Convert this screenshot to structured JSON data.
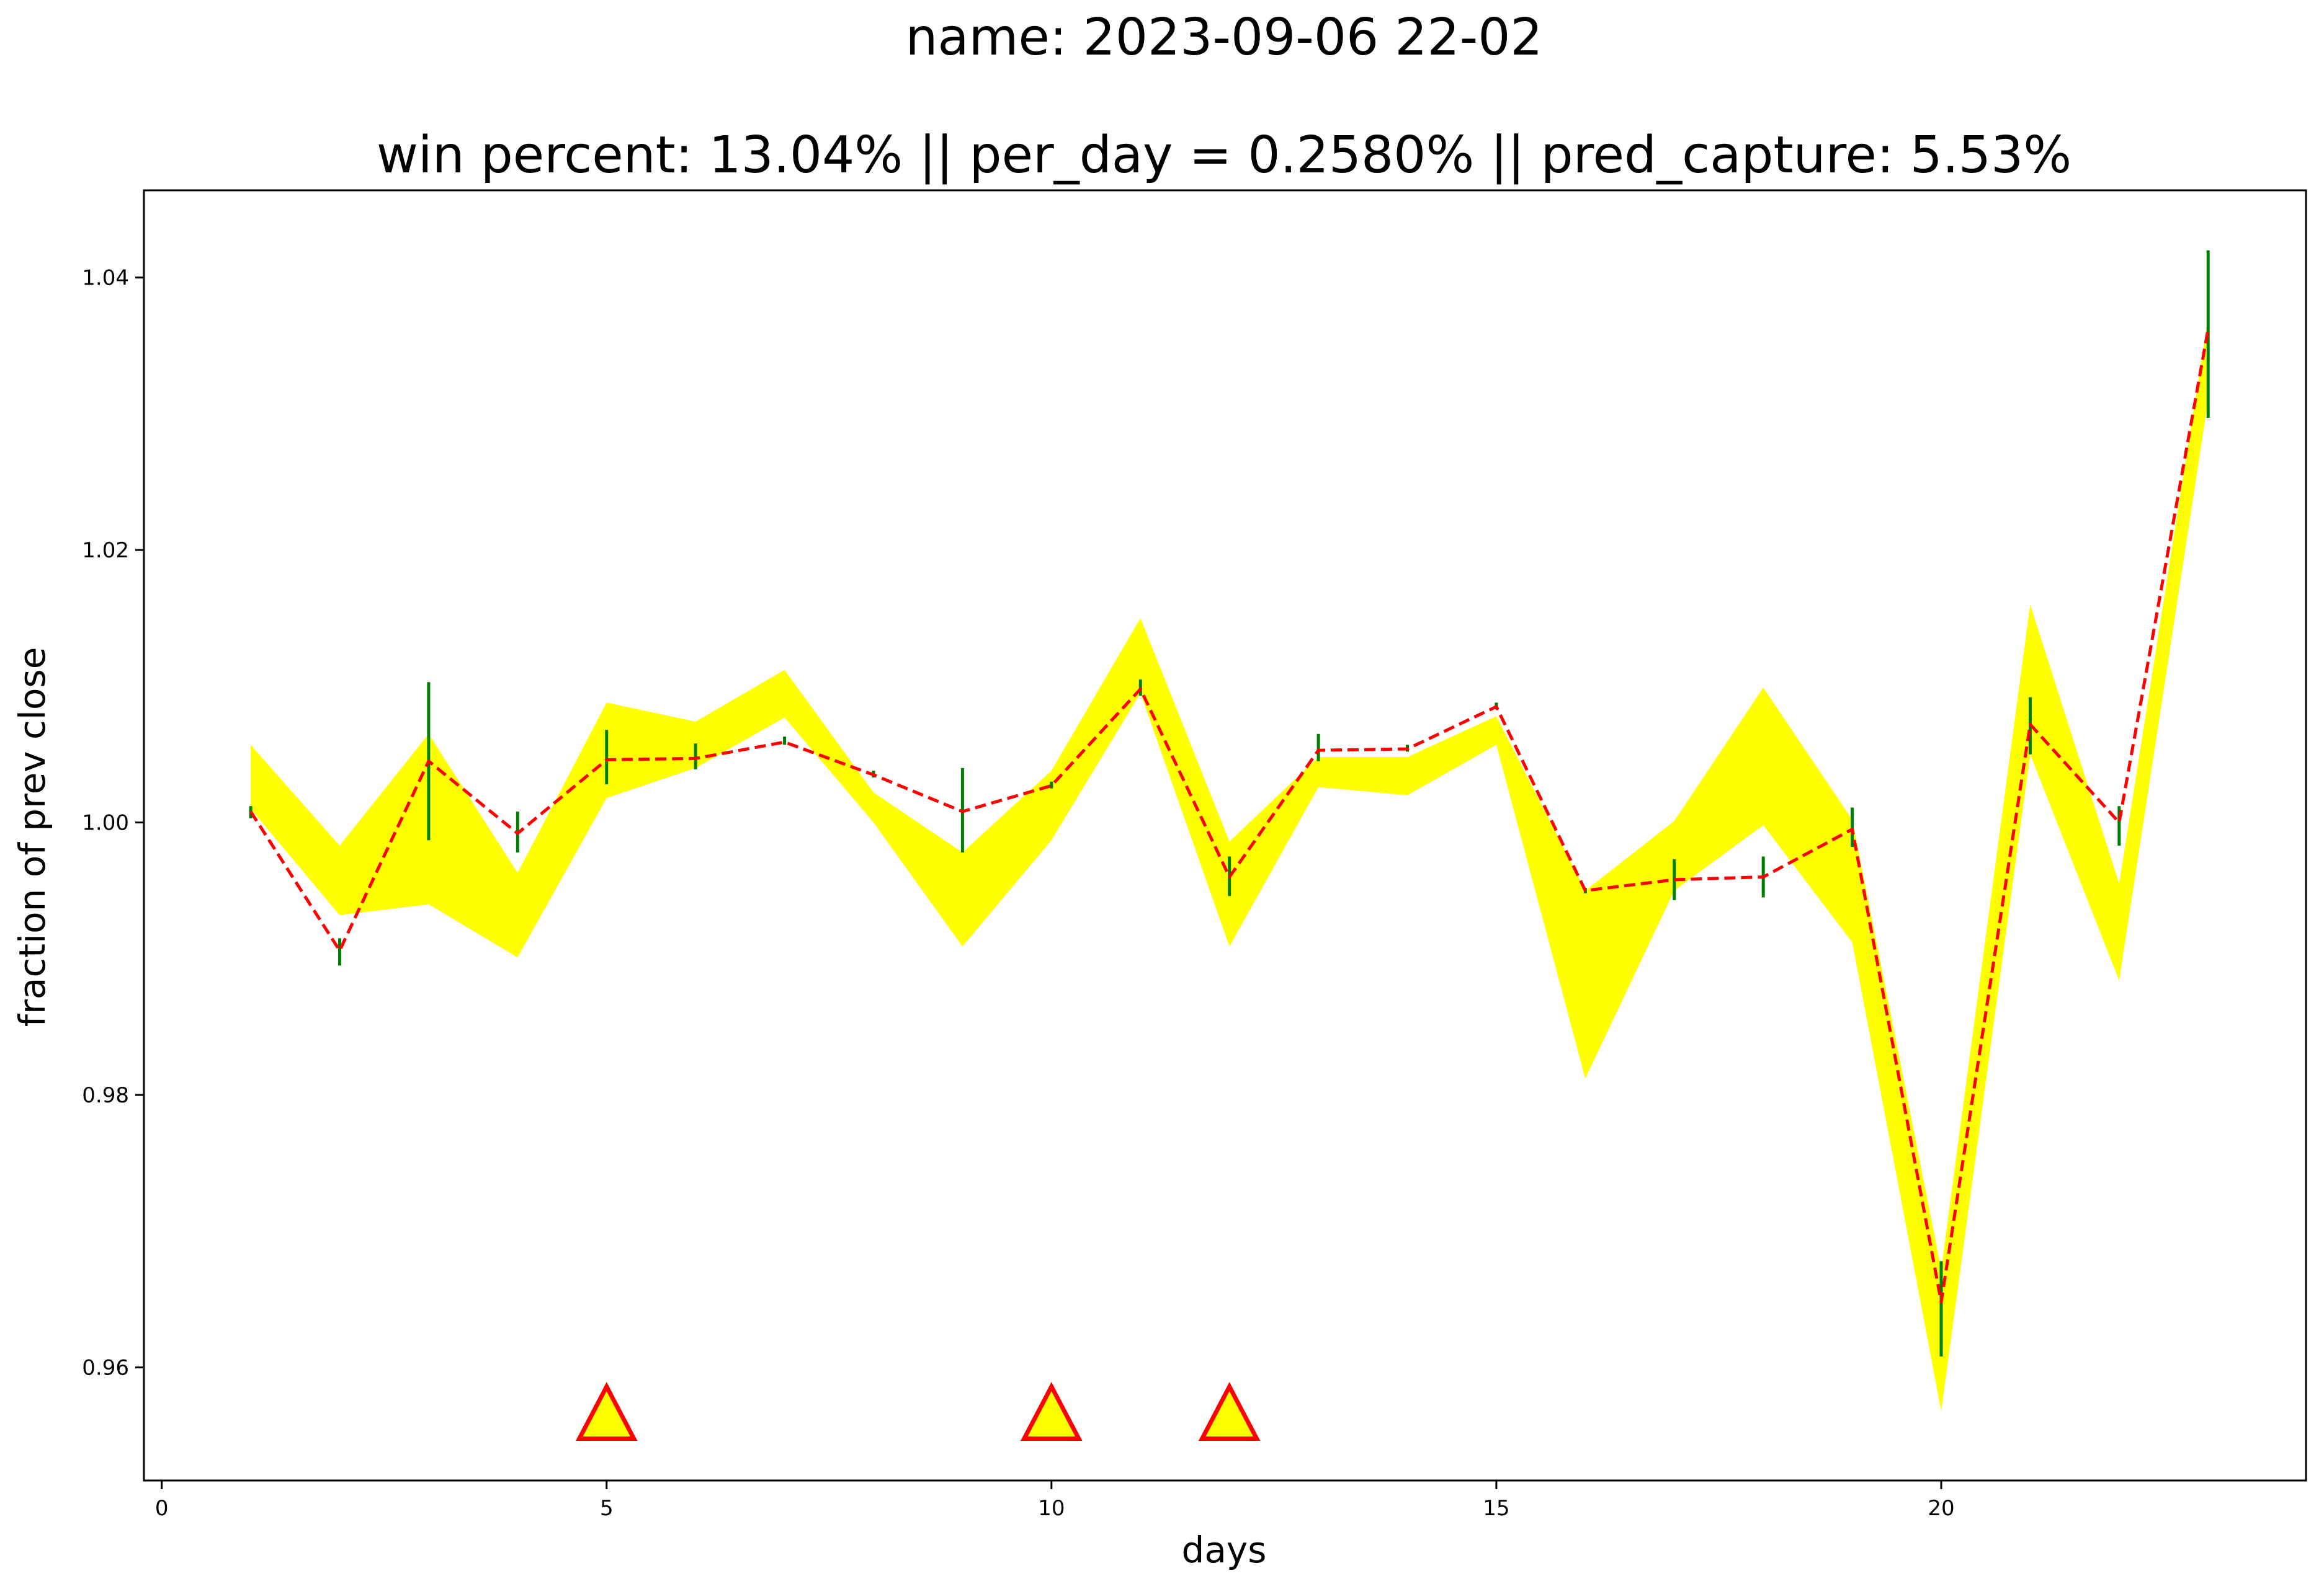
{
  "chart_data": {
    "type": "line",
    "title": "name: 2023-09-06 22-02",
    "subtitle": "win percent: 13.04%  || per_day = 0.2580% || pred_capture: 5.53%",
    "xlabel": "days",
    "ylabel": "fraction of prev close",
    "xlim": [
      -0.2,
      24.1
    ],
    "ylim": [
      0.9517,
      1.0464
    ],
    "xticks": [
      0,
      5,
      10,
      15,
      20
    ],
    "yticks": [
      0.96,
      0.98,
      1.0,
      1.02,
      1.04
    ],
    "xtick_labels": [
      "0",
      "5",
      "10",
      "15",
      "20"
    ],
    "ytick_labels": [
      "0.96",
      "0.98",
      "1.00",
      "1.02",
      "1.04"
    ],
    "grid": false,
    "x": [
      1,
      2,
      3,
      4,
      5,
      6,
      7,
      8,
      9,
      10,
      11,
      12,
      13,
      14,
      15,
      16,
      17,
      18,
      19,
      20,
      21,
      22,
      23
    ],
    "band": {
      "color": "#ffff00",
      "upper": [
        1.0057,
        0.9983,
        1.0065,
        0.9963,
        1.0088,
        1.0074,
        1.0112,
        1.0022,
        0.9978,
        1.0038,
        1.015,
        0.9986,
        1.0048,
        1.0048,
        1.0078,
        0.995,
        1.0001,
        1.0099,
        1.0002,
        0.9672,
        1.016,
        0.9955,
        1.037
      ],
      "lower": [
        1.001,
        0.9932,
        0.994,
        0.9901,
        1.0018,
        1.004,
        1.0077,
        1.0,
        0.9909,
        0.9987,
        1.0095,
        0.9909,
        1.0026,
        1.002,
        1.0057,
        0.9812,
        0.995,
        0.9998,
        0.9912,
        0.9568,
        1.005,
        0.9884,
        1.031
      ]
    },
    "series": [
      {
        "color": "#ff0000",
        "style": "dashed",
        "values": [
          1.0008,
          0.9906,
          1.0045,
          0.9992,
          1.0046,
          1.0047,
          1.0059,
          1.0035,
          1.0008,
          1.0027,
          1.0098,
          0.996,
          1.0053,
          1.0054,
          1.0085,
          0.995,
          0.9958,
          0.996,
          0.9995,
          0.9648,
          1.0072,
          1.0,
          1.0362
        ]
      }
    ],
    "error_bars": {
      "color": "#008000",
      "low": [
        1.0003,
        0.9895,
        0.9987,
        0.9978,
        1.0028,
        1.0039,
        1.0057,
        1.0033,
        0.9978,
        1.0025,
        1.0093,
        0.9946,
        1.0045,
        1.0052,
        1.0083,
        0.9948,
        0.9943,
        0.9945,
        0.9982,
        0.9608,
        1.005,
        0.9983,
        1.0297
      ],
      "high": [
        1.0012,
        0.9915,
        1.0103,
        1.0008,
        1.0068,
        1.0058,
        1.0063,
        1.0038,
        1.004,
        1.003,
        1.0105,
        0.9975,
        1.0065,
        1.0057,
        1.0088,
        0.9952,
        0.9973,
        0.9975,
        1.0011,
        0.9678,
        1.0092,
        1.0012,
        1.042
      ]
    },
    "markers": {
      "shape": "triangle",
      "fill": "#ffff00",
      "edge": "#ff0000",
      "x": [
        5,
        10,
        12
      ],
      "y": [
        0.9565,
        0.9565,
        0.9565
      ]
    }
  }
}
